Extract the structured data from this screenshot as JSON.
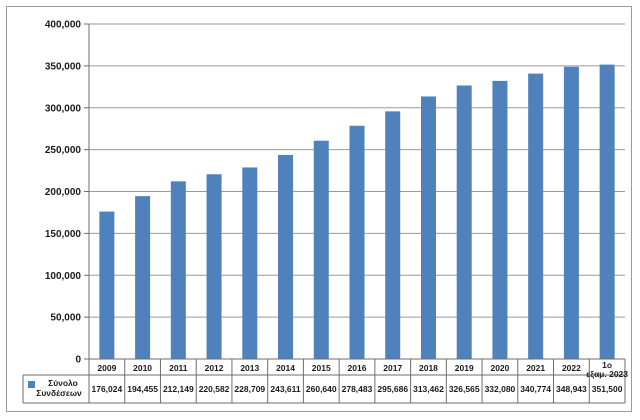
{
  "chart_data": {
    "type": "bar",
    "categories": [
      "2009",
      "2010",
      "2011",
      "2012",
      "2013",
      "2014",
      "2015",
      "2016",
      "2017",
      "2018",
      "2019",
      "2020",
      "2021",
      "2022",
      "1o εξαμ. 2023"
    ],
    "series": [
      {
        "name": "Σύνολο Συνδέσεων",
        "values": [
          176024,
          194455,
          212149,
          220582,
          228709,
          243611,
          260640,
          278483,
          295686,
          313462,
          326565,
          332080,
          340774,
          348943,
          351500
        ],
        "labels": [
          "176,024",
          "194,455",
          "212,149",
          "220,582",
          "228,709",
          "243,611",
          "260,640",
          "278,483",
          "295,686",
          "313,462",
          "326,565",
          "332,080",
          "340,774",
          "348,943",
          "351,500"
        ],
        "color": "#4f81bd"
      }
    ],
    "ylim": [
      0,
      400000
    ],
    "yticks": [
      0,
      50000,
      100000,
      150000,
      200000,
      250000,
      300000,
      350000,
      400000
    ],
    "ytick_labels": [
      "0",
      "50,000",
      "100,000",
      "150,000",
      "200,000",
      "250,000",
      "300,000",
      "350,000",
      "400,000"
    ],
    "grid": true,
    "data_table": true,
    "legend": "in-table-left"
  }
}
